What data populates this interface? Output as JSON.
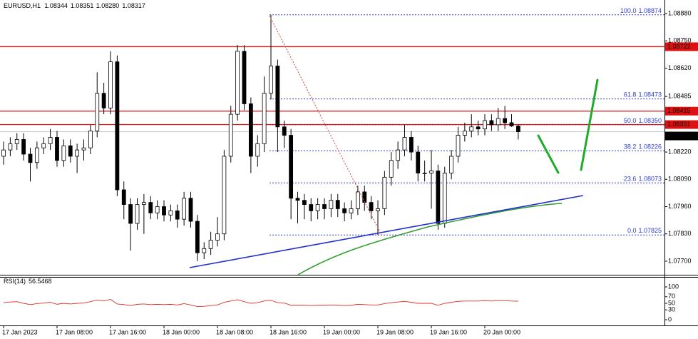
{
  "chart_data": {
    "type": "candlestick",
    "symbol": "EURUSD,H1",
    "ohlc_labels": [
      "1.08344",
      "1.08351",
      "1.08280",
      "1.08317"
    ],
    "open": [
      1.082,
      1.0823,
      1.0826,
      1.0828,
      1.0821,
      1.0817,
      1.0824,
      1.0826,
      1.0829,
      1.0818,
      1.0825,
      1.082,
      1.0823,
      1.0824,
      1.0832,
      1.085,
      1.0843,
      1.0865,
      1.0804,
      1.0797,
      1.0788,
      1.0797,
      1.0798,
      1.0793,
      1.0796,
      1.0792,
      1.0794,
      1.079,
      1.08,
      1.0789,
      1.0774,
      1.0776,
      1.078,
      1.0783,
      1.082,
      1.084,
      1.087,
      1.0845,
      1.082,
      1.0826,
      1.085,
      1.0863,
      1.0834,
      1.083,
      1.08,
      1.0799,
      1.0797,
      1.0794,
      1.0797,
      1.0795,
      1.0799,
      1.0795,
      1.0793,
      1.0795,
      1.0803,
      1.0798,
      1.0794,
      1.0795,
      1.081,
      1.0818,
      1.0823,
      1.0829,
      1.0822,
      1.0812,
      1.0812,
      1.0813,
      1.0788,
      1.0812,
      1.082,
      1.083,
      1.0832,
      1.0834,
      1.0833,
      1.0837,
      1.0835,
      1.0838,
      1.0836,
      1.08344
    ],
    "high": [
      1.0827,
      1.0829,
      1.0831,
      1.0831,
      1.0824,
      1.0827,
      1.0829,
      1.0833,
      1.0832,
      1.0828,
      1.0828,
      1.0826,
      1.0828,
      1.0835,
      1.086,
      1.0855,
      1.087,
      1.0868,
      1.0808,
      1.08,
      1.08,
      1.0802,
      1.0801,
      1.0799,
      1.0799,
      1.0797,
      1.0797,
      1.0803,
      1.0803,
      1.0792,
      1.0779,
      1.0784,
      1.0791,
      1.0823,
      1.0844,
      1.0873,
      1.0873,
      1.0848,
      1.083,
      1.0858,
      1.08874,
      1.0866,
      1.0837,
      1.0833,
      1.0803,
      1.0802,
      1.08,
      1.08,
      1.08,
      1.0802,
      1.0802,
      1.0798,
      1.0799,
      1.0806,
      1.0806,
      1.0801,
      1.0799,
      1.0813,
      1.0822,
      1.0827,
      1.0835,
      1.0832,
      1.0825,
      1.0818,
      1.0823,
      1.0816,
      1.0815,
      1.0823,
      1.0834,
      1.0836,
      1.084,
      1.0837,
      1.084,
      1.084,
      1.0843,
      1.0844,
      1.084,
      1.08351
    ],
    "low": [
      1.0816,
      1.082,
      1.0823,
      1.0818,
      1.0808,
      1.0814,
      1.0821,
      1.0823,
      1.0815,
      1.0815,
      1.0817,
      1.0812,
      1.0818,
      1.0821,
      1.0829,
      1.084,
      1.084,
      1.0801,
      1.079,
      1.0775,
      1.0785,
      1.0783,
      1.079,
      1.079,
      1.0789,
      1.0789,
      1.0786,
      1.0787,
      1.0786,
      1.077,
      1.0771,
      1.0773,
      1.0777,
      1.078,
      1.0817,
      1.0837,
      1.0842,
      1.0812,
      1.0815,
      1.0822,
      1.0847,
      1.0822,
      1.0824,
      1.079,
      1.0788,
      1.079,
      1.0789,
      1.079,
      1.079,
      1.0791,
      1.0791,
      1.0789,
      1.079,
      1.0792,
      1.0794,
      1.079,
      1.07825,
      1.0792,
      1.0806,
      1.0814,
      1.082,
      1.0818,
      1.0808,
      1.0808,
      1.0795,
      1.0785,
      1.0786,
      1.0809,
      1.0817,
      1.0827,
      1.0829,
      1.083,
      1.083,
      1.0832,
      1.0832,
      1.0833,
      1.0834,
      1.0828
    ],
    "close": [
      1.0823,
      1.0826,
      1.0828,
      1.0821,
      1.0817,
      1.0824,
      1.0826,
      1.0829,
      1.0818,
      1.0825,
      1.082,
      1.0823,
      1.0824,
      1.0832,
      1.085,
      1.0843,
      1.0865,
      1.0804,
      1.0797,
      1.0788,
      1.0797,
      1.0798,
      1.0793,
      1.0796,
      1.0792,
      1.0794,
      1.079,
      1.08,
      1.0789,
      1.0774,
      1.0776,
      1.078,
      1.0783,
      1.082,
      1.084,
      1.087,
      1.0845,
      1.082,
      1.0826,
      1.085,
      1.0863,
      1.0834,
      1.083,
      1.08,
      1.0799,
      1.0797,
      1.0794,
      1.0797,
      1.0795,
      1.0799,
      1.0795,
      1.0793,
      1.0795,
      1.0803,
      1.0798,
      1.0794,
      1.0795,
      1.081,
      1.0818,
      1.0823,
      1.0829,
      1.0822,
      1.0812,
      1.0812,
      1.0813,
      1.0788,
      1.0812,
      1.082,
      1.083,
      1.0832,
      1.0834,
      1.0833,
      1.0837,
      1.0835,
      1.0838,
      1.0836,
      1.08344,
      1.08317
    ],
    "x_labels": [
      "17 Jan 2023",
      "17 Jan 08:00",
      "17 Jan 16:00",
      "18 Jan 00:00",
      "18 Jan 08:00",
      "18 Jan 16:00",
      "19 Jan 00:00",
      "19 Jan 08:00",
      "19 Jan 16:00",
      "20 Jan 00:00"
    ],
    "ylim": [
      1.07642,
      1.08931
    ],
    "yticks": [
      {
        "value": 1.0888,
        "label": "1.08880"
      },
      {
        "value": 1.0875,
        "label": "1.08750"
      },
      {
        "value": 1.0862,
        "label": "1.08620"
      },
      {
        "value": 1.08485,
        "label": "1.08485"
      },
      {
        "value": 1.0822,
        "label": "1.08220"
      },
      {
        "value": 1.0809,
        "label": "1.08090"
      },
      {
        "value": 1.0796,
        "label": "1.07960"
      },
      {
        "value": 1.0783,
        "label": "1.07830"
      },
      {
        "value": 1.077,
        "label": "1.07700"
      }
    ],
    "levels": [
      1.08722,
      1.08415,
      1.08351
    ],
    "current_price": 1.08317,
    "fibonacci": [
      {
        "level": "100.0",
        "price": 1.08874,
        "price_label": "1.08874"
      },
      {
        "level": "61.8",
        "price": 1.08473,
        "price_label": "1.08473"
      },
      {
        "level": "50.0",
        "price": 1.0835,
        "price_label": "1.08350"
      },
      {
        "level": "38.2",
        "price": 1.08226,
        "price_label": "1.08226"
      },
      {
        "level": "23.6",
        "price": 1.08073,
        "price_label": "1.08073"
      },
      {
        "level": "0.0",
        "price": 1.07825,
        "price_label": "1.07825"
      }
    ],
    "rsi": {
      "name": "RSI(14)",
      "color": "#e03020",
      "ylim": [
        0,
        100
      ],
      "yticks": [
        100,
        70,
        50,
        30,
        0
      ],
      "values": [
        52,
        54,
        55,
        50,
        46,
        49,
        51,
        53,
        47,
        50,
        48,
        50,
        51,
        55,
        60,
        57,
        62,
        48,
        46,
        43,
        47,
        48,
        46,
        47,
        46,
        47,
        45,
        49,
        45,
        40,
        41,
        43,
        45,
        53,
        57,
        61,
        55,
        50,
        52,
        57,
        59,
        52,
        51,
        44,
        44,
        44,
        43,
        44,
        44,
        45,
        44,
        43,
        44,
        47,
        46,
        45,
        45,
        49,
        52,
        54,
        56,
        53,
        50,
        50,
        50,
        44,
        50,
        53,
        56,
        57,
        57,
        57,
        58,
        57,
        58,
        58,
        57,
        56.5468
      ]
    }
  }
}
